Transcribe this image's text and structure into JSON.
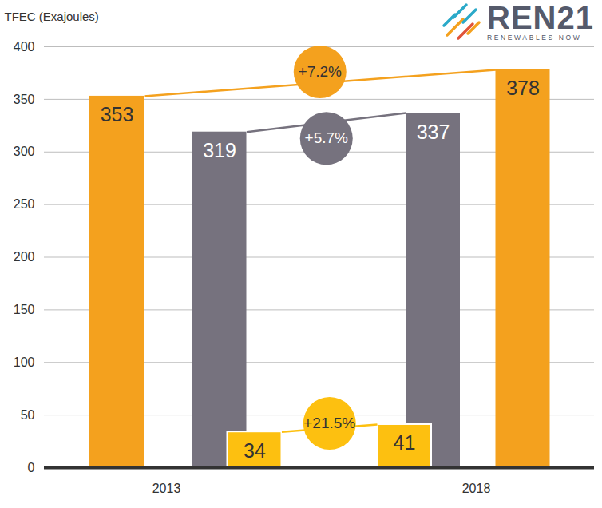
{
  "chart_data": {
    "type": "bar",
    "y_label": "TFEC (Exajoules)",
    "logo": {
      "text": "REN21",
      "tagline": "RENEWABLES NOW"
    },
    "categories": [
      "2013",
      "2018"
    ],
    "series": [
      {
        "color": "#f4a11e",
        "values": [
          353,
          378
        ],
        "change_label": "+7.2%"
      },
      {
        "color": "#76727e",
        "values": [
          319,
          337
        ],
        "change_label": "+5.7%"
      },
      {
        "color": "#fdc010",
        "values": [
          34,
          41
        ],
        "change_label": "+21.5%"
      }
    ],
    "ylim": [
      0,
      400
    ],
    "yticks": [
      0,
      50,
      100,
      150,
      200,
      250,
      300,
      350,
      400
    ],
    "grid": true,
    "data_labels": true
  }
}
